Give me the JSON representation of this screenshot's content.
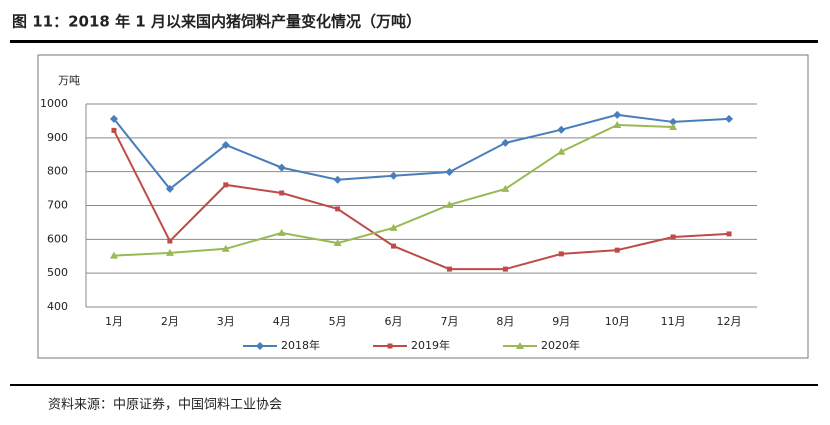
{
  "chart_data": {
    "type": "line",
    "title": "图 11：2018 年 1 月以来国内猪饲料产量变化情况（万吨）",
    "y_label": "万吨",
    "source": "资料来源：中原证券，中国饲料工业协会",
    "categories": [
      "1月",
      "2月",
      "3月",
      "4月",
      "5月",
      "6月",
      "7月",
      "8月",
      "9月",
      "10月",
      "11月",
      "12月"
    ],
    "series": [
      {
        "name": "2018年",
        "color": "#4a7ebb",
        "marker": "diamond",
        "values": [
          956,
          749,
          879,
          812,
          776,
          788,
          799,
          885,
          924,
          968,
          947,
          956
        ]
      },
      {
        "name": "2019年",
        "color": "#be4b48",
        "marker": "square",
        "values": [
          922,
          595,
          761,
          737,
          690,
          580,
          512,
          512,
          557,
          568,
          607,
          616
        ]
      },
      {
        "name": "2020年",
        "color": "#98b954",
        "marker": "triangle",
        "values": [
          552,
          560,
          572,
          619,
          589,
          634,
          702,
          749,
          859,
          938,
          932,
          null
        ]
      }
    ],
    "ylim": [
      400,
      1000
    ],
    "yticks": [
      400,
      500,
      600,
      700,
      800,
      900,
      1000
    ],
    "grid": true,
    "legend": "bottom"
  }
}
